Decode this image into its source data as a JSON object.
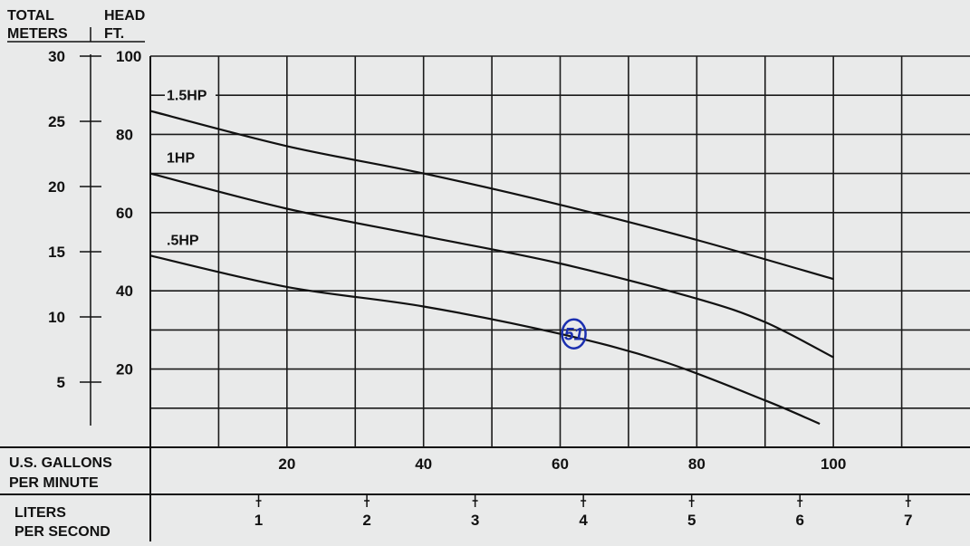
{
  "header": {
    "left_label_line1": "TOTAL",
    "left_label_line2": "METERS",
    "right_label_line1": "HEAD",
    "right_label_line2": "FT."
  },
  "footer": {
    "gpm_label_line1": "U.S. GALLONS",
    "gpm_label_line2": "PER MINUTE",
    "lps_label_line1": "LITERS",
    "lps_label_line2": "PER SECOND"
  },
  "annotation": {
    "text": "51",
    "color": "#1b2fb0",
    "x": 62,
    "y": 29
  },
  "chart_data": {
    "type": "line",
    "title": "",
    "xlabel": "U.S. GALLONS PER MINUTE",
    "ylabel": "HEAD FT.",
    "xlim": [
      0,
      120
    ],
    "ylim": [
      0,
      100
    ],
    "grid": true,
    "x_ticks": [
      20,
      40,
      60,
      80,
      100
    ],
    "y_ticks_ft": [
      20,
      40,
      60,
      80,
      100
    ],
    "y_ticks_meters": [
      5,
      10,
      15,
      20,
      25,
      30
    ],
    "x_ticks_lps": [
      1,
      2,
      3,
      4,
      5,
      6,
      7
    ],
    "line_color": "#111111",
    "series": [
      {
        "name": "1.5HP",
        "points": [
          [
            0,
            86
          ],
          [
            20,
            77
          ],
          [
            40,
            70
          ],
          [
            60,
            62
          ],
          [
            80,
            53
          ],
          [
            100,
            43
          ]
        ]
      },
      {
        "name": "1HP",
        "points": [
          [
            0,
            70
          ],
          [
            20,
            61
          ],
          [
            40,
            54
          ],
          [
            60,
            47
          ],
          [
            80,
            38
          ],
          [
            90,
            32
          ],
          [
            100,
            23
          ]
        ]
      },
      {
        "name": ".5HP",
        "points": [
          [
            0,
            49
          ],
          [
            20,
            41
          ],
          [
            40,
            36
          ],
          [
            60,
            29
          ],
          [
            75,
            22
          ],
          [
            90,
            12
          ],
          [
            98,
            6
          ]
        ]
      }
    ]
  }
}
